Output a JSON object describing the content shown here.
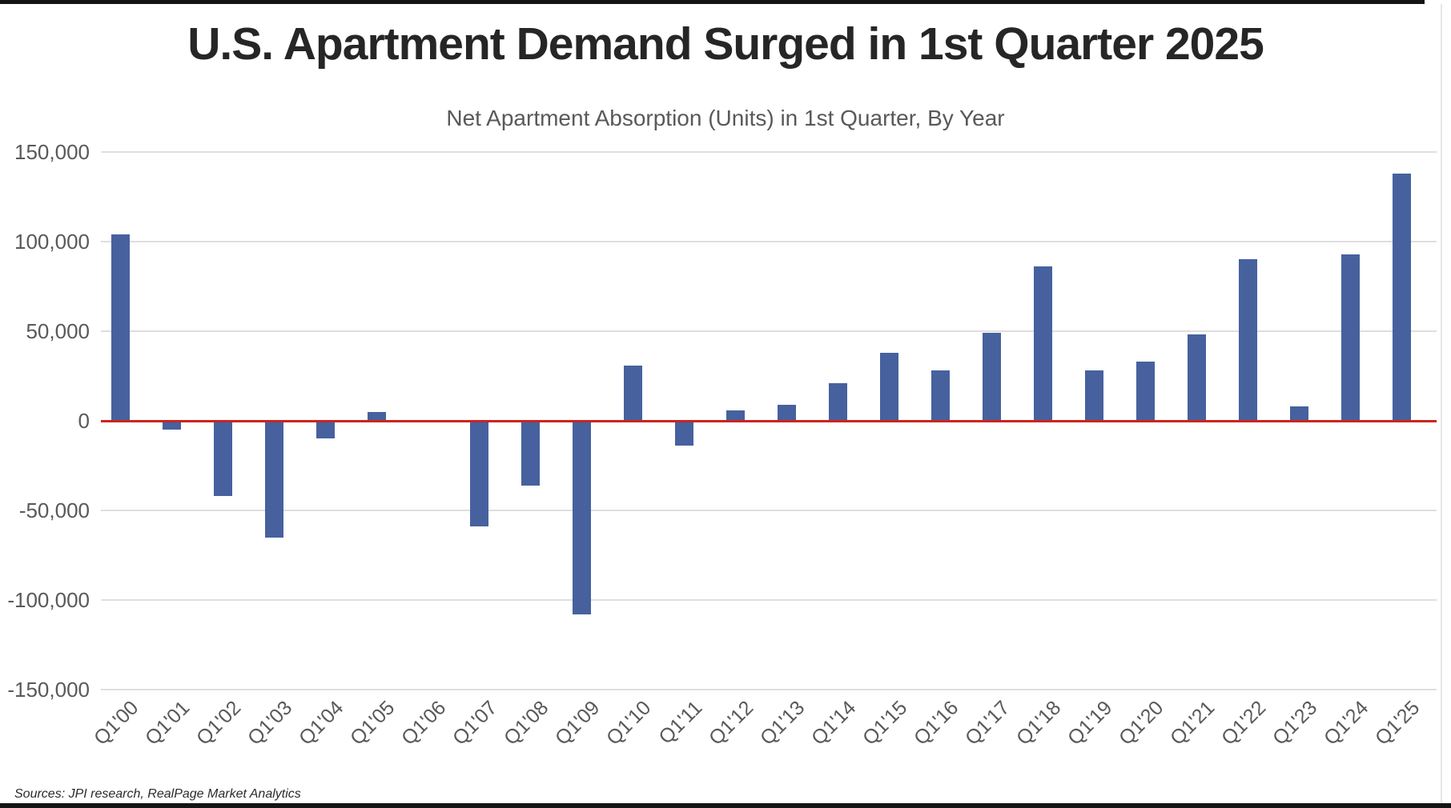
{
  "header": {
    "title": "U.S. Apartment Demand Surged in 1st Quarter 2025",
    "subtitle": "Net Apartment Absorption (Units) in 1st Quarter, By Year"
  },
  "footer": {
    "source": "Sources: JPI research, RealPage Market Analytics"
  },
  "colors": {
    "bar": "#46619E",
    "zero_line": "#C9251F",
    "gridline": "#DEDEDE",
    "axis_text": "#595959",
    "title_text": "#262626"
  },
  "chart_data": {
    "type": "bar",
    "title": "U.S. Apartment Demand Surged in 1st Quarter 2025",
    "subtitle": "Net Apartment Absorption (Units) in 1st Quarter, By Year",
    "xlabel": "",
    "ylabel": "",
    "ylim": [
      -150000,
      150000
    ],
    "ytick_interval": 50000,
    "ytick_labels": [
      "150,000",
      "100,000",
      "50,000",
      "0",
      "-50,000",
      "-100,000",
      "-150,000"
    ],
    "grid": "horizontal",
    "legend_position": "none",
    "zero_baseline_highlighted": true,
    "categories": [
      "Q1'00",
      "Q1'01",
      "Q1'02",
      "Q1'03",
      "Q1'04",
      "Q1'05",
      "Q1'06",
      "Q1'07",
      "Q1'08",
      "Q1'09",
      "Q1'10",
      "Q1'11",
      "Q1'12",
      "Q1'13",
      "Q1'14",
      "Q1'15",
      "Q1'16",
      "Q1'17",
      "Q1'18",
      "Q1'19",
      "Q1'20",
      "Q1'21",
      "Q1'22",
      "Q1'23",
      "Q1'24",
      "Q1'25"
    ],
    "values": [
      104000,
      -5000,
      -42000,
      -65000,
      -10000,
      5000,
      -1000,
      -59000,
      -36000,
      -108000,
      31000,
      -14000,
      6000,
      9000,
      21000,
      38000,
      28000,
      49000,
      86000,
      28000,
      33000,
      48000,
      90000,
      8000,
      93000,
      138000
    ]
  }
}
